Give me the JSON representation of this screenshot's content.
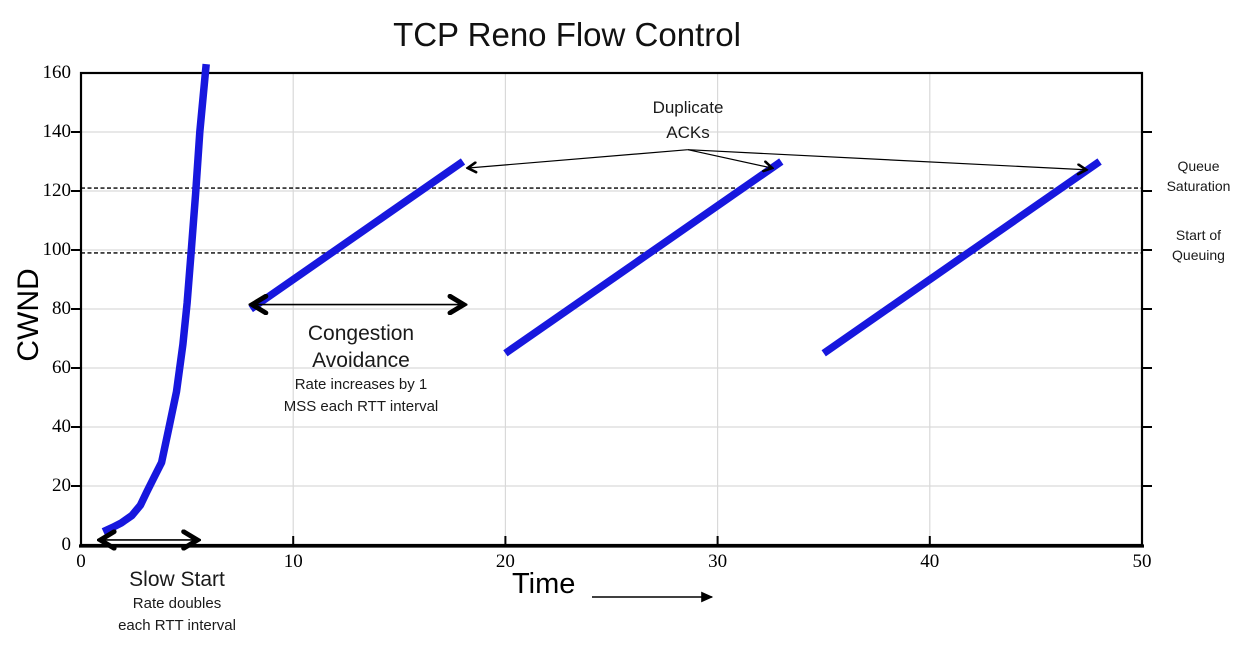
{
  "chart_data": {
    "type": "line",
    "title": "TCP Reno Flow Control",
    "xlabel": "Time",
    "ylabel": "CWND",
    "xlim": [
      0,
      50
    ],
    "ylim": [
      0,
      160
    ],
    "x_ticks": [
      0,
      10,
      20,
      30,
      40,
      50
    ],
    "y_ticks": [
      0,
      20,
      40,
      60,
      80,
      100,
      120,
      140,
      160
    ],
    "grid": true,
    "legend": "none",
    "series_color": "#1717DE",
    "grid_color": "#D9D9D9",
    "axis_color": "#000000",
    "series": [
      {
        "name": "slow-start-curve",
        "points": [
          [
            1.05,
            4.5
          ],
          [
            1.5,
            6
          ],
          [
            1.9,
            7.5
          ],
          [
            2.4,
            10
          ],
          [
            2.8,
            13.5
          ],
          [
            3.1,
            18
          ],
          [
            3.45,
            23
          ],
          [
            3.8,
            28
          ],
          [
            4.15,
            40
          ],
          [
            4.5,
            52
          ],
          [
            4.8,
            68
          ],
          [
            5.0,
            82
          ],
          [
            5.2,
            100
          ],
          [
            5.4,
            119
          ],
          [
            5.6,
            140
          ],
          [
            5.9,
            163
          ]
        ]
      },
      {
        "name": "congestion-avoidance-ramp-1",
        "points": [
          [
            8,
            80
          ],
          [
            18,
            130
          ]
        ]
      },
      {
        "name": "congestion-avoidance-ramp-2",
        "points": [
          [
            20,
            65
          ],
          [
            33,
            130
          ]
        ]
      },
      {
        "name": "congestion-avoidance-ramp-3",
        "points": [
          [
            35,
            65
          ],
          [
            48,
            130
          ]
        ]
      }
    ],
    "reference_lines": [
      {
        "y": 121,
        "label": "Queue Saturation"
      },
      {
        "y": 99,
        "label": "Start of Queuing"
      }
    ],
    "arrows": {
      "slow_start_range": {
        "x1": 0.95,
        "y1": 1.7,
        "x2": 5.45,
        "y2": 1.7,
        "style": "double"
      },
      "congestion_range": {
        "x1": 8.1,
        "y1": 81.5,
        "x2": 18.0,
        "y2": 81.5,
        "style": "double"
      },
      "dup_ack_fan": {
        "origin": [
          28.6,
          134.0
        ],
        "targets": [
          [
            18.25,
            127.8
          ],
          [
            32.55,
            127.8
          ],
          [
            47.35,
            127.2
          ]
        ]
      },
      "time_axis_arrow": {
        "px1": 592,
        "py1": 597,
        "px2": 712,
        "py2": 597
      }
    }
  },
  "annotations": {
    "slow_start": {
      "title": "Slow Start",
      "line1": "Rate doubles",
      "line2": "each RTT interval"
    },
    "congestion_avoidance": {
      "title_line1": "Congestion",
      "title_line2": "Avoidance",
      "line1": "Rate increases by 1",
      "line2": "MSS each RTT interval"
    },
    "duplicate_acks": {
      "line1": "Duplicate",
      "line2": "ACKs"
    },
    "queue_saturation": {
      "line1": "Queue",
      "line2": "Saturation"
    },
    "start_of_queuing": {
      "line1": "Start of",
      "line2": "Queuing"
    }
  }
}
